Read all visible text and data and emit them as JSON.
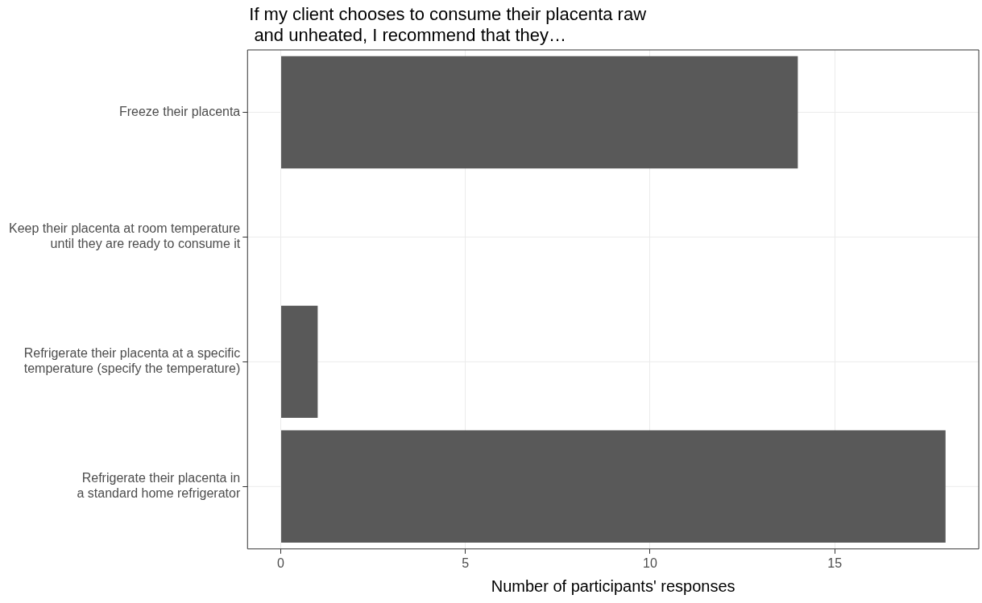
{
  "chart_data": {
    "type": "bar",
    "orientation": "horizontal",
    "title": "If my client chooses to consume their placenta raw\n and unheated, I recommend that they…",
    "xlabel": "Number of participants' responses",
    "categories": [
      "Freeze their placenta",
      "Keep their placenta at room temperature\nuntil they are ready to consume it",
      "Refrigerate their placenta at a specific\ntemperature (specify the temperature)",
      "Refrigerate their placenta in\na standard home refrigerator"
    ],
    "values": [
      14,
      0,
      1,
      18
    ],
    "color": "#595959",
    "xlim": [
      -0.9,
      18.9
    ],
    "xticks": [
      0,
      5,
      10,
      15
    ],
    "grid": true,
    "legend": false
  }
}
